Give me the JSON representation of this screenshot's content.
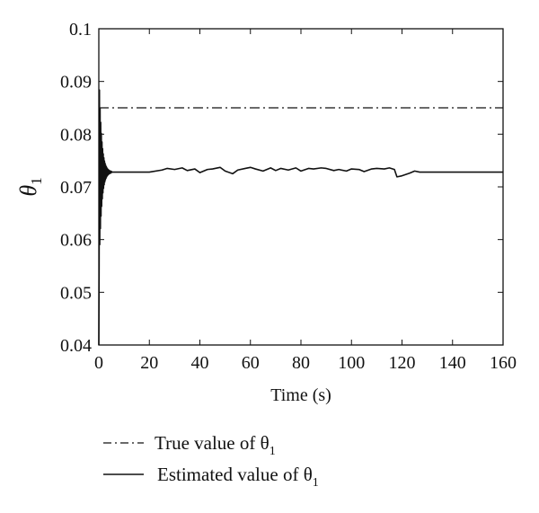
{
  "chart_data": {
    "type": "line",
    "title": "",
    "xlabel": "Time (s)",
    "ylabel": "θ",
    "ylabel_subscript": "1",
    "xlim": [
      0,
      160
    ],
    "ylim": [
      0.04,
      0.1
    ],
    "x_ticks": [
      0,
      20,
      40,
      60,
      80,
      100,
      120,
      140,
      160
    ],
    "x_tick_labels": [
      "0",
      "20",
      "40",
      "60",
      "80",
      "100",
      "120",
      "140",
      "160"
    ],
    "y_ticks": [
      0.04,
      0.05,
      0.06,
      0.07,
      0.08,
      0.09,
      0.1
    ],
    "y_tick_labels": [
      "0.04",
      "0.05",
      "0.06",
      "0.07",
      "0.08",
      "0.09",
      "0.1"
    ],
    "grid": false,
    "legend_position": "bottom",
    "series": [
      {
        "name": "True value of θ",
        "name_subscript": "1",
        "style": "dash-dot",
        "color": "#111111",
        "x": [
          0,
          160
        ],
        "y": [
          0.085,
          0.085
        ]
      },
      {
        "name": "Estimated value of θ",
        "name_subscript": "1",
        "style": "solid",
        "color": "#111111",
        "transient": {
          "x_start": 0,
          "x_end": 5,
          "y_center": 0.0728,
          "initial_amplitude": 0.02,
          "oscillations": 40,
          "y_min": 0.04,
          "y_max": 0.0925
        },
        "x": [
          5,
          20,
          25,
          27,
          30,
          33,
          35,
          38,
          40,
          43,
          45,
          48,
          50,
          53,
          55,
          58,
          60,
          62,
          65,
          68,
          70,
          72,
          75,
          78,
          80,
          83,
          85,
          88,
          90,
          93,
          95,
          98,
          100,
          103,
          105,
          108,
          110,
          113,
          115,
          117,
          118,
          120,
          123,
          125,
          127,
          160
        ],
        "y": [
          0.0728,
          0.0728,
          0.0732,
          0.0735,
          0.0733,
          0.0736,
          0.0731,
          0.0734,
          0.0727,
          0.0733,
          0.0734,
          0.0737,
          0.073,
          0.0725,
          0.0732,
          0.0735,
          0.0737,
          0.0734,
          0.073,
          0.0736,
          0.0731,
          0.0735,
          0.0732,
          0.0736,
          0.073,
          0.0735,
          0.0734,
          0.0736,
          0.0735,
          0.0731,
          0.0733,
          0.073,
          0.0734,
          0.0733,
          0.0729,
          0.0734,
          0.0735,
          0.0734,
          0.0736,
          0.0733,
          0.0719,
          0.0721,
          0.0726,
          0.073,
          0.0728,
          0.0728
        ]
      }
    ]
  }
}
